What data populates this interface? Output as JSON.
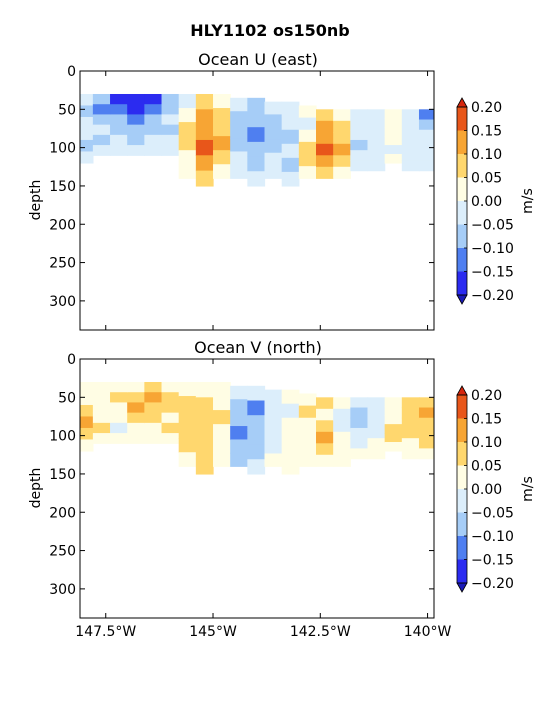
{
  "figure": {
    "title": "HLY1102 os150nb"
  },
  "levels": [
    -0.2,
    -0.15,
    -0.1,
    -0.05,
    0.0,
    0.05,
    0.1,
    0.15,
    0.2
  ],
  "palette": {
    "-0.20": "#2b2bf0",
    "-0.15": "#4f7ff0",
    "-0.10": "#a6cdf7",
    "-0.05": "#dceefb",
    "0.00": "#fffde4",
    "0.05": "#ffd76e",
    "0.10": "#f7a534",
    "0.15": "#e8561a",
    "under": "#1b1bb8",
    "over": "#d6260d"
  },
  "chart_data": [
    {
      "type": "heatmap",
      "title": "Ocean U (east)",
      "xlabel": "",
      "ylabel": "depth",
      "colorbar_label": "m/s",
      "colorbar_ticks": [
        "0.20",
        "0.15",
        "0.10",
        "0.05",
        "0.00",
        "−0.05",
        "−0.10",
        "−0.15",
        "−0.20"
      ],
      "yticks": [
        "0",
        "50",
        "100",
        "150",
        "200",
        "250",
        "300"
      ],
      "xticks": [
        "147.5°W",
        "145°W",
        "142.5°W",
        "140°W"
      ],
      "xlim": [
        -148.1,
        -139.85
      ],
      "ylim": [
        338,
        0
      ],
      "columns": [
        {
          "lon": -148.0,
          "top": 30,
          "bottom": 120,
          "u": [
            -0.05,
            -0.1,
            -0.05,
            -0.05,
            -0.1,
            -0.05
          ]
        },
        {
          "lon": -147.6,
          "top": 30,
          "bottom": 110,
          "u": [
            -0.1,
            -0.15,
            -0.1,
            -0.05,
            -0.1,
            -0.05
          ]
        },
        {
          "lon": -147.2,
          "top": 30,
          "bottom": 110,
          "u": [
            -0.2,
            -0.15,
            -0.1,
            -0.1,
            -0.05,
            -0.05
          ]
        },
        {
          "lon": -146.8,
          "top": 30,
          "bottom": 110,
          "u": [
            -0.2,
            -0.2,
            -0.15,
            -0.1,
            -0.1,
            -0.05
          ]
        },
        {
          "lon": -146.4,
          "top": 30,
          "bottom": 110,
          "u": [
            -0.2,
            -0.15,
            -0.1,
            -0.1,
            -0.05,
            -0.05
          ]
        },
        {
          "lon": -146.0,
          "top": 30,
          "bottom": 110,
          "u": [
            -0.1,
            -0.1,
            -0.05,
            -0.1,
            -0.05,
            -0.05
          ]
        },
        {
          "lon": -145.6,
          "top": 30,
          "bottom": 140,
          "u": [
            -0.05,
            0.0,
            0.05,
            0.05,
            0.0,
            0.0
          ]
        },
        {
          "lon": -145.2,
          "top": 30,
          "bottom": 150,
          "u": [
            0.05,
            0.1,
            0.1,
            0.15,
            0.1,
            0.05
          ]
        },
        {
          "lon": -144.8,
          "top": 30,
          "bottom": 140,
          "u": [
            0.0,
            0.05,
            0.05,
            0.1,
            0.05,
            0.0
          ]
        },
        {
          "lon": -144.4,
          "top": 35,
          "bottom": 140,
          "u": [
            -0.05,
            -0.1,
            -0.1,
            -0.1,
            -0.05,
            -0.05
          ]
        },
        {
          "lon": -144.0,
          "top": 35,
          "bottom": 150,
          "u": [
            -0.1,
            -0.1,
            -0.15,
            -0.1,
            -0.1,
            -0.05
          ]
        },
        {
          "lon": -143.6,
          "top": 40,
          "bottom": 140,
          "u": [
            -0.05,
            -0.1,
            -0.1,
            -0.1,
            -0.05,
            -0.05
          ]
        },
        {
          "lon": -143.2,
          "top": 40,
          "bottom": 150,
          "u": [
            -0.05,
            -0.05,
            -0.1,
            -0.05,
            -0.1,
            -0.05
          ]
        },
        {
          "lon": -142.8,
          "top": 45,
          "bottom": 140,
          "u": [
            0.0,
            -0.05,
            0.0,
            0.05,
            0.05,
            0.0
          ]
        },
        {
          "lon": -142.4,
          "top": 50,
          "bottom": 140,
          "u": [
            0.05,
            0.1,
            0.1,
            0.15,
            0.1,
            0.05
          ]
        },
        {
          "lon": -142.0,
          "top": 50,
          "bottom": 140,
          "u": [
            0.0,
            0.05,
            0.05,
            0.1,
            0.05,
            0.0
          ]
        },
        {
          "lon": -141.6,
          "top": 50,
          "bottom": 130,
          "u": [
            -0.05,
            -0.05,
            -0.05,
            -0.1,
            -0.05,
            -0.05
          ]
        },
        {
          "lon": -141.2,
          "top": 50,
          "bottom": 130,
          "u": [
            -0.05,
            -0.05,
            -0.05,
            -0.05,
            -0.05,
            -0.05
          ]
        },
        {
          "lon": -140.8,
          "top": 50,
          "bottom": 120,
          "u": [
            0.0,
            0.0,
            0.0,
            0.0,
            -0.05,
            0.0
          ]
        },
        {
          "lon": -140.4,
          "top": 50,
          "bottom": 130,
          "u": [
            -0.05,
            -0.05,
            -0.05,
            -0.05,
            -0.05,
            -0.05
          ]
        },
        {
          "lon": -140.0,
          "top": 50,
          "bottom": 130,
          "u": [
            -0.15,
            -0.1,
            -0.05,
            -0.05,
            -0.05,
            -0.05
          ]
        }
      ]
    },
    {
      "type": "heatmap",
      "title": "Ocean V (north)",
      "xlabel": "",
      "ylabel": "depth",
      "colorbar_label": "m/s",
      "colorbar_ticks": [
        "0.20",
        "0.15",
        "0.10",
        "0.05",
        "0.00",
        "−0.05",
        "−0.10",
        "−0.15",
        "−0.20"
      ],
      "yticks": [
        "0",
        "50",
        "100",
        "150",
        "200",
        "250",
        "300"
      ],
      "xticks": [
        "147.5°W",
        "145°W",
        "142.5°W",
        "140°W"
      ],
      "xlim": [
        -148.1,
        -139.85
      ],
      "ylim": [
        338,
        0
      ],
      "columns": [
        {
          "lon": -148.0,
          "top": 30,
          "bottom": 120,
          "u": [
            0.0,
            0.0,
            0.05,
            0.1,
            0.05,
            0.0
          ]
        },
        {
          "lon": -147.6,
          "top": 30,
          "bottom": 110,
          "u": [
            0.0,
            0.0,
            0.0,
            0.0,
            0.05,
            0.0
          ]
        },
        {
          "lon": -147.2,
          "top": 30,
          "bottom": 110,
          "u": [
            0.0,
            0.05,
            0.0,
            0.0,
            -0.05,
            0.0
          ]
        },
        {
          "lon": -146.8,
          "top": 30,
          "bottom": 110,
          "u": [
            0.0,
            0.05,
            0.1,
            0.05,
            0.0,
            0.0
          ]
        },
        {
          "lon": -146.4,
          "top": 30,
          "bottom": 110,
          "u": [
            0.05,
            0.1,
            0.05,
            0.05,
            0.0,
            0.0
          ]
        },
        {
          "lon": -146.0,
          "top": 30,
          "bottom": 110,
          "u": [
            0.0,
            0.05,
            0.05,
            0.0,
            0.05,
            0.0
          ]
        },
        {
          "lon": -145.6,
          "top": 30,
          "bottom": 140,
          "u": [
            0.0,
            0.05,
            0.05,
            0.05,
            0.05,
            0.0
          ]
        },
        {
          "lon": -145.2,
          "top": 30,
          "bottom": 150,
          "u": [
            0.0,
            0.05,
            0.05,
            0.05,
            0.05,
            0.05
          ]
        },
        {
          "lon": -144.8,
          "top": 30,
          "bottom": 140,
          "u": [
            0.0,
            0.0,
            0.05,
            0.0,
            0.0,
            0.0
          ]
        },
        {
          "lon": -144.4,
          "top": 35,
          "bottom": 140,
          "u": [
            -0.05,
            -0.1,
            -0.1,
            -0.15,
            -0.1,
            -0.1
          ]
        },
        {
          "lon": -144.0,
          "top": 35,
          "bottom": 150,
          "u": [
            -0.05,
            -0.15,
            -0.1,
            -0.1,
            -0.1,
            -0.05
          ]
        },
        {
          "lon": -143.6,
          "top": 40,
          "bottom": 140,
          "u": [
            -0.05,
            -0.05,
            -0.05,
            -0.05,
            -0.05,
            0.0
          ]
        },
        {
          "lon": -143.2,
          "top": 40,
          "bottom": 150,
          "u": [
            0.0,
            -0.05,
            0.0,
            0.0,
            0.0,
            0.0
          ]
        },
        {
          "lon": -142.8,
          "top": 45,
          "bottom": 140,
          "u": [
            0.0,
            0.05,
            0.0,
            0.0,
            0.0,
            0.0
          ]
        },
        {
          "lon": -142.4,
          "top": 50,
          "bottom": 140,
          "u": [
            0.05,
            0.0,
            0.05,
            0.1,
            0.05,
            0.0
          ]
        },
        {
          "lon": -142.0,
          "top": 50,
          "bottom": 140,
          "u": [
            0.0,
            -0.05,
            -0.05,
            0.0,
            0.0,
            0.0
          ]
        },
        {
          "lon": -141.6,
          "top": 50,
          "bottom": 130,
          "u": [
            -0.05,
            -0.1,
            -0.1,
            -0.05,
            -0.05,
            0.0
          ]
        },
        {
          "lon": -141.2,
          "top": 50,
          "bottom": 130,
          "u": [
            -0.05,
            -0.05,
            -0.05,
            -0.05,
            0.0,
            0.0
          ]
        },
        {
          "lon": -140.8,
          "top": 50,
          "bottom": 120,
          "u": [
            0.0,
            0.0,
            0.0,
            0.05,
            0.05,
            0.0
          ]
        },
        {
          "lon": -140.4,
          "top": 50,
          "bottom": 130,
          "u": [
            0.05,
            0.05,
            0.05,
            0.05,
            0.0,
            0.0
          ]
        },
        {
          "lon": -140.0,
          "top": 50,
          "bottom": 130,
          "u": [
            0.05,
            0.1,
            0.05,
            0.05,
            0.05,
            0.0
          ]
        }
      ]
    }
  ]
}
